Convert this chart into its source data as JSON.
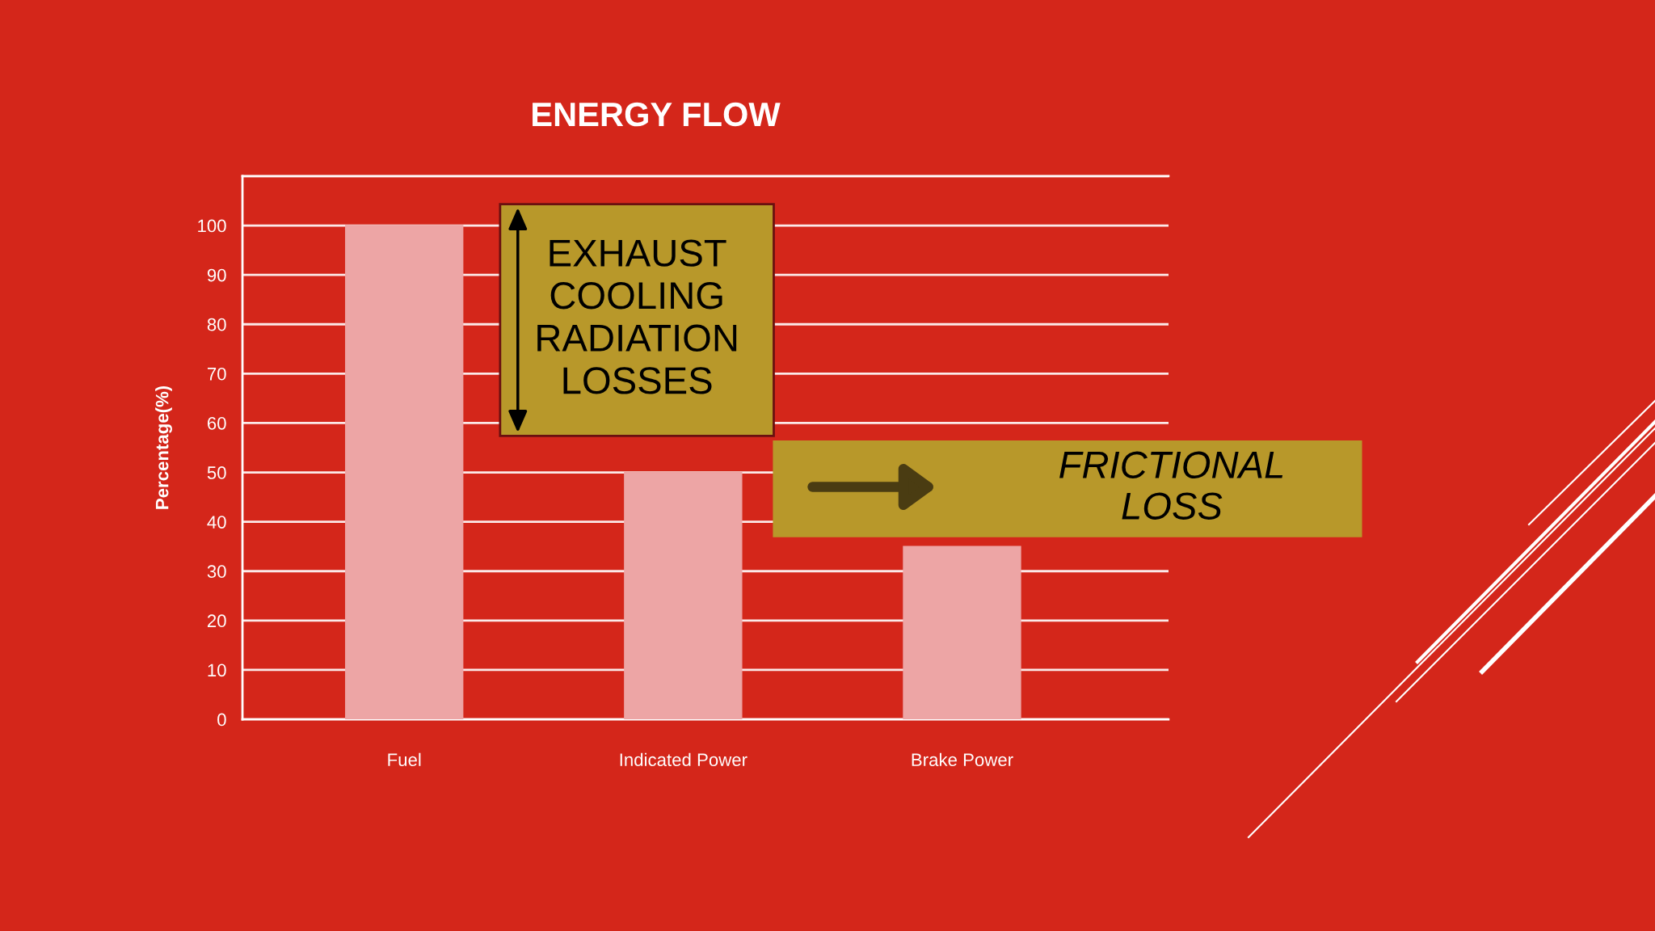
{
  "chart_data": {
    "type": "bar",
    "title": "ENERGY FLOW",
    "ylabel": "Percentage(%)",
    "categories": [
      "Fuel",
      "Indicated Power",
      "Brake Power"
    ],
    "values": [
      100,
      50,
      35
    ],
    "color": "#eda5a5",
    "ylim": [
      0,
      110
    ],
    "yticks": [
      0,
      10,
      20,
      30,
      40,
      50,
      60,
      70,
      80,
      90,
      100,
      {
        "value": 110,
        "label": null
      }
    ],
    "grid": "y",
    "annotations": [
      "EXHAUST\nCOOLING\nRADIATION\nLOSSES",
      "FRICTIONAL\nLOSS"
    ]
  }
}
